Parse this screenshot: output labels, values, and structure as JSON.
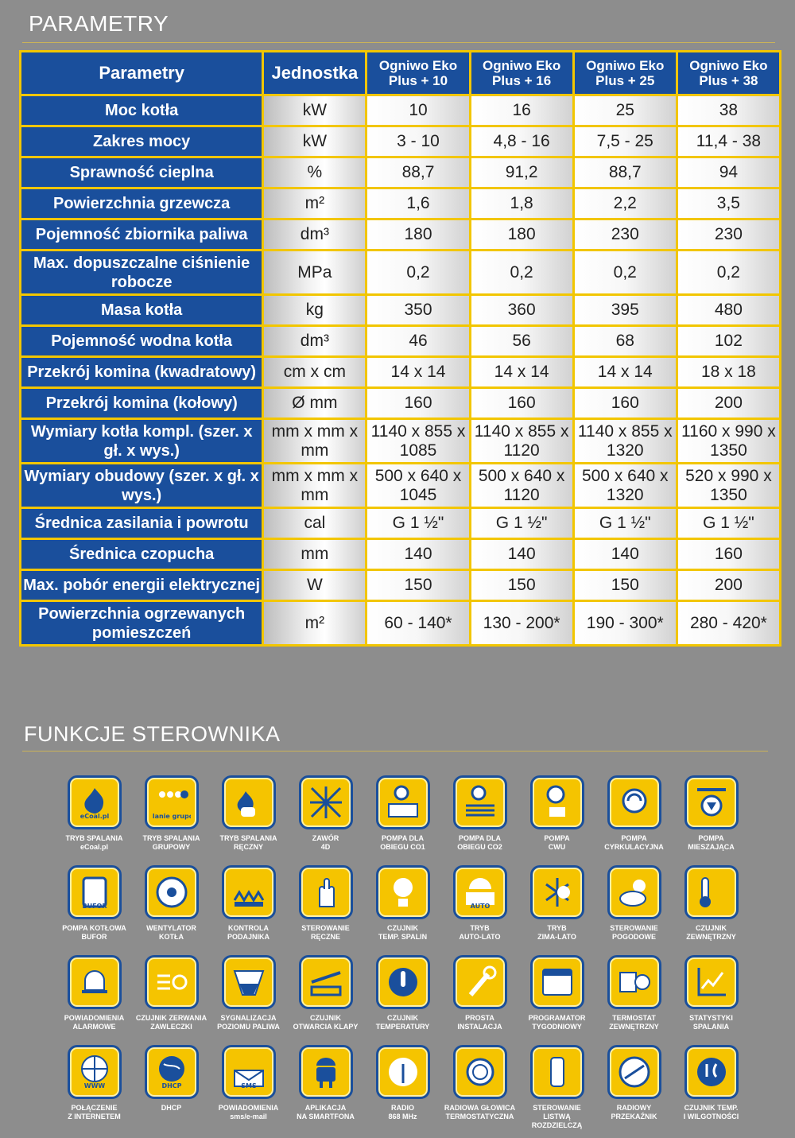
{
  "sections": {
    "parameters_title": "PARAMETRY",
    "functions_title": "FUNKCJE STEROWNIKA"
  },
  "table": {
    "header": [
      "Parametry",
      "Jednostka",
      "Ogniwo Eko Plus + 10",
      "Ogniwo Eko Plus + 16",
      "Ogniwo Eko Plus + 25",
      "Ogniwo Eko Plus + 38"
    ],
    "rows": [
      {
        "param": "Moc kotła",
        "unit": "kW",
        "values": [
          "10",
          "16",
          "25",
          "38"
        ]
      },
      {
        "param": "Zakres mocy",
        "unit": "kW",
        "values": [
          "3 - 10",
          "4,8 - 16",
          "7,5 - 25",
          "11,4 - 38"
        ]
      },
      {
        "param": "Sprawność cieplna",
        "unit": "%",
        "values": [
          "88,7",
          "91,2",
          "88,7",
          "94"
        ]
      },
      {
        "param": "Powierzchnia grzewcza",
        "unit": "m²",
        "values": [
          "1,6",
          "1,8",
          "2,2",
          "3,5"
        ]
      },
      {
        "param": "Pojemność zbiornika paliwa",
        "unit": "dm³",
        "values": [
          "180",
          "180",
          "230",
          "230"
        ]
      },
      {
        "param": "Max. dopuszczalne ciśnienie robocze",
        "unit": "MPa",
        "values": [
          "0,2",
          "0,2",
          "0,2",
          "0,2"
        ]
      },
      {
        "param": "Masa kotła",
        "unit": "kg",
        "values": [
          "350",
          "360",
          "395",
          "480"
        ]
      },
      {
        "param": "Pojemność wodna kotła",
        "unit": "dm³",
        "values": [
          "46",
          "56",
          "68",
          "102"
        ]
      },
      {
        "param": "Przekrój komina (kwadratowy)",
        "unit": "cm x cm",
        "values": [
          "14 x 14",
          "14 x 14",
          "14 x 14",
          "18 x 18"
        ]
      },
      {
        "param": "Przekrój komina (kołowy)",
        "unit": "Ø mm",
        "values": [
          "160",
          "160",
          "160",
          "200"
        ]
      },
      {
        "param": "Wymiary kotła kompl. (szer. x gł. x wys.)",
        "unit": "mm x mm x mm",
        "values": [
          "1140 x 855 x 1085",
          "1140 x 855 x 1120",
          "1140 x 855 x 1320",
          "1160 x 990 x 1350"
        ]
      },
      {
        "param": "Wymiary obudowy (szer. x gł. x wys.)",
        "unit": "mm x mm x mm",
        "values": [
          "500 x 640 x 1045",
          "500 x 640 x 1120",
          "500 x 640 x 1320",
          "520 x 990 x 1350"
        ]
      },
      {
        "param": "Średnica zasilania i powrotu",
        "unit": "cal",
        "values": [
          "G 1 ½\"",
          "G 1 ½\"",
          "G 1 ½\"",
          "G 1 ½\""
        ]
      },
      {
        "param": "Średnica czopucha",
        "unit": "mm",
        "values": [
          "140",
          "140",
          "140",
          "160"
        ]
      },
      {
        "param": "Max. pobór energii elektrycznej",
        "unit": "W",
        "values": [
          "150",
          "150",
          "150",
          "200"
        ]
      },
      {
        "param": "Powierzchnia ogrzewanych pomieszczeń",
        "unit": "m²",
        "values": [
          "60 - 140*",
          "130 - 200*",
          "190 - 300*",
          "280 - 420*"
        ]
      }
    ]
  },
  "functions": [
    {
      "label": "TRYB SPALANIA\neCoal.pl",
      "icon": "flame-icon",
      "badge": "eCoal.pl"
    },
    {
      "label": "TRYB SPALANIA\nGRUPOWY",
      "icon": "group-burn-icon",
      "badge": "spalanie grupowe"
    },
    {
      "label": "TRYB SPALANIA\nRĘCZNY",
      "icon": "hand-flame-icon"
    },
    {
      "label": "ZAWÓR\n4D",
      "icon": "valve-icon"
    },
    {
      "label": "POMPA DLA\nOBIEGU CO1",
      "icon": "pump-radiator-icon"
    },
    {
      "label": "POMPA DLA\nOBIEGU CO2",
      "icon": "pump-floor-icon"
    },
    {
      "label": "POMPA\nCWU",
      "icon": "pump-tap-icon"
    },
    {
      "label": "POMPA\nCYRKULACYJNA",
      "icon": "pump-circulation-icon"
    },
    {
      "label": "POMPA\nMIESZAJĄCA",
      "icon": "pump-mixing-icon"
    },
    {
      "label": "POMPA KOTŁOWA\nBUFOR",
      "icon": "buffer-tank-icon",
      "badge": "BUFOR"
    },
    {
      "label": "WENTYLATOR\nKOTŁA",
      "icon": "fan-icon"
    },
    {
      "label": "KONTROLA\nPODAJNIKA",
      "icon": "feeder-icon"
    },
    {
      "label": "STEROWANIE\nRĘCZNE",
      "icon": "hand-icon"
    },
    {
      "label": "CZUJNIK\nTEMP. SPALIN",
      "icon": "flue-sensor-icon"
    },
    {
      "label": "TRYB\nAUTO-LATO",
      "icon": "sun-auto-icon",
      "badge": "AUTO"
    },
    {
      "label": "TRYB\nZIMA-LATO",
      "icon": "snow-sun-icon"
    },
    {
      "label": "STEROWANIE\nPOGODOWE",
      "icon": "weather-icon"
    },
    {
      "label": "CZUJNIK\nZEWNĘTRZNY",
      "icon": "outdoor-thermometer-icon"
    },
    {
      "label": "POWIADOMIENIA\nALARMOWE",
      "icon": "bell-icon"
    },
    {
      "label": "CZUJNIK ZERWANIA\nZAWLECZKI",
      "icon": "shear-pin-icon"
    },
    {
      "label": "SYGNALIZACJA\nPOZIOMU PALIWA",
      "icon": "fuel-level-icon"
    },
    {
      "label": "CZUJNIK\nOTWARCIA KLAPY",
      "icon": "lid-sensor-icon"
    },
    {
      "label": "CZUJNIK\nTEMPERATURY",
      "icon": "thermometer-icon"
    },
    {
      "label": "PROSTA\nINSTALACJA",
      "icon": "wrench-icon"
    },
    {
      "label": "PROGRAMATOR\nTYGODNIOWY",
      "icon": "calendar-icon"
    },
    {
      "label": "TERMOSTAT\nZEWNĘTRZNY",
      "icon": "room-thermostat-icon"
    },
    {
      "label": "STATYSTYKI\nSPALANIA",
      "icon": "chart-icon"
    },
    {
      "label": "POŁĄCZENIE\nZ INTERNETEM",
      "icon": "globe-www-icon",
      "badge": "WWW"
    },
    {
      "label": "DHCP",
      "icon": "dhcp-globe-icon",
      "badge": "DHCP"
    },
    {
      "label": "POWIADOMIENIA\nsms/e-mail",
      "icon": "sms-envelope-icon",
      "badge": "SMS"
    },
    {
      "label": "APLIKACJA\nNA SMARTFONA",
      "icon": "android-icon"
    },
    {
      "label": "RADIO\n868 MHz",
      "icon": "radio-antenna-icon"
    },
    {
      "label": "RADIOWA GŁOWICA\nTERMOSTATYCZNA",
      "icon": "radio-head-icon"
    },
    {
      "label": "STEROWANIE LISTWĄ\nROZDZIELCZĄ",
      "icon": "manifold-icon"
    },
    {
      "label": "RADIOWY\nPRZEKAŹNIK",
      "icon": "radio-relay-icon"
    },
    {
      "label": "CZUJNIK TEMP.\nI WILGOTNOŚCI",
      "icon": "temp-humidity-icon"
    }
  ],
  "colors": {
    "background": "#8d8d8d",
    "table_border": "#f2c600",
    "header_blue": "#1a4f9c",
    "tile_yellow": "#f5c400"
  }
}
